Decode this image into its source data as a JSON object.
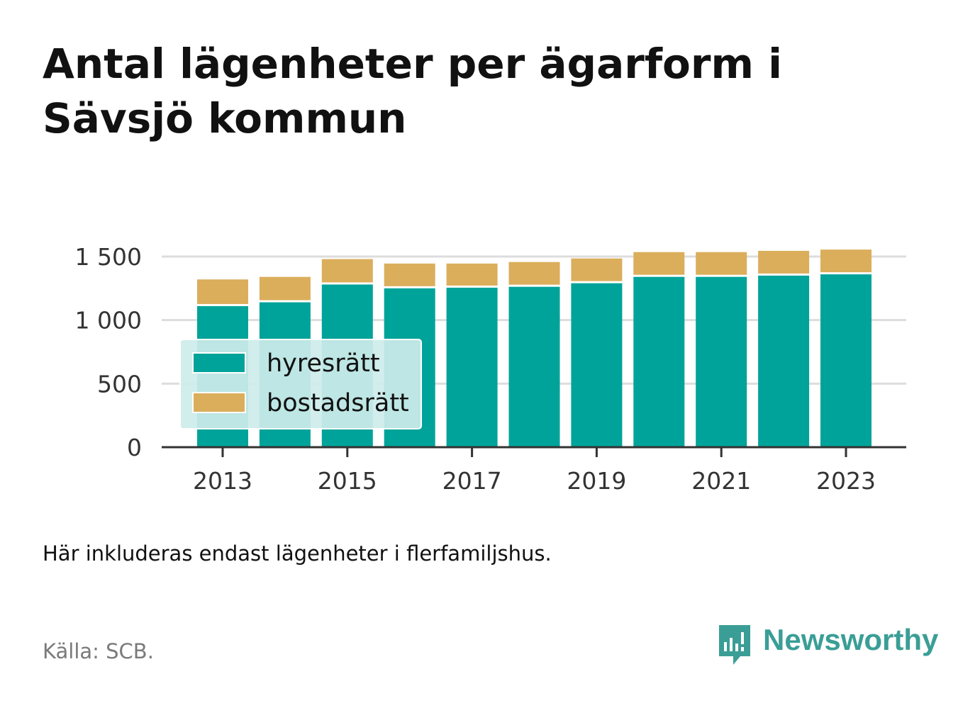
{
  "title": "Antal lägenheter per ägarform i Sävsjö kommun",
  "note": "Här inkluderas endast lägenheter i flerfamiljshus.",
  "source": "Källa: SCB.",
  "brand": {
    "name": "Newsworthy",
    "icon": "newsworthy-logo-icon",
    "color": "#3a9e96"
  },
  "colors": {
    "hyresratt": "#00a39a",
    "bostadsratt": "#dbae5c",
    "grid": "#dddddd",
    "axis": "#333333",
    "legend_bg": "#cdebea",
    "legend_border": "#ffffff"
  },
  "chart_data": {
    "type": "bar",
    "stacked": true,
    "title": "Antal lägenheter per ägarform i Sävsjö kommun",
    "xlabel": "",
    "ylabel": "",
    "x": [
      2013,
      2014,
      2015,
      2016,
      2017,
      2018,
      2019,
      2020,
      2021,
      2022,
      2023
    ],
    "x_ticks": [
      "2013",
      "2015",
      "2017",
      "2019",
      "2021",
      "2023"
    ],
    "y_ticks": [
      {
        "value": 0,
        "label": "0"
      },
      {
        "value": 500,
        "label": "500"
      },
      {
        "value": 1000,
        "label": "1 000"
      },
      {
        "value": 1500,
        "label": "1 500"
      }
    ],
    "ylim": [
      0,
      1500
    ],
    "grid": true,
    "legend": "inside-left",
    "series": [
      {
        "name": "hyresrätt",
        "values": [
          1110,
          1140,
          1280,
          1250,
          1255,
          1262,
          1290,
          1340,
          1340,
          1350,
          1360
        ]
      },
      {
        "name": "bostadsrätt",
        "values": [
          210,
          200,
          200,
          195,
          190,
          195,
          195,
          195,
          195,
          195,
          195
        ]
      }
    ]
  }
}
